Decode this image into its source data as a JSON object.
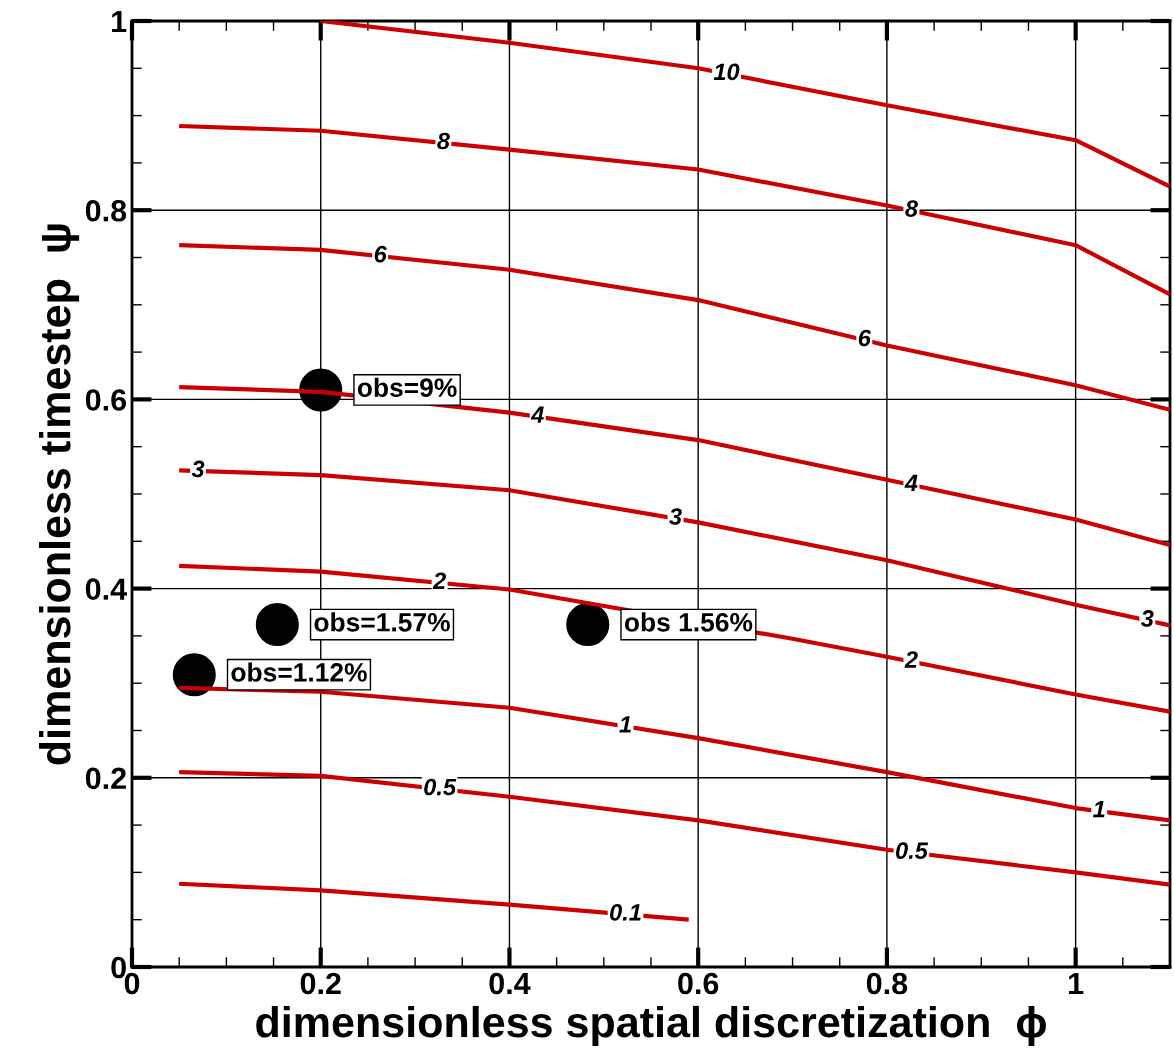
{
  "chart_data": {
    "type": "line",
    "xlabel": "dimensionless spatial discretization  ϕ",
    "ylabel": "dimensionless timestep  ψ",
    "xlim": [
      0,
      1.1
    ],
    "xticks": [
      0,
      0.2,
      0.4,
      0.6,
      0.8,
      1
    ],
    "ylim": [
      0,
      1
    ],
    "yticks": [
      0,
      0.2,
      0.4,
      0.6,
      0.8,
      1
    ],
    "grid": true,
    "legend": false,
    "marker": "none",
    "line_style": "solid",
    "series": [
      {
        "name": "10",
        "color": "#cc0000",
        "x": [
          0.2,
          0.4,
          0.6,
          0.8,
          1.0,
          1.1
        ],
        "values": [
          1.0,
          0.977,
          0.95,
          0.911,
          0.874,
          0.825
        ]
      },
      {
        "name": "8",
        "color": "#cc0000",
        "x": [
          0.05,
          0.2,
          0.4,
          0.6,
          0.8,
          1.0,
          1.1
        ],
        "values": [
          0.889,
          0.884,
          0.864,
          0.843,
          0.805,
          0.763,
          0.711
        ]
      },
      {
        "name": "6",
        "color": "#cc0000",
        "x": [
          0.05,
          0.2,
          0.4,
          0.6,
          0.8,
          1.0,
          1.1
        ],
        "values": [
          0.763,
          0.758,
          0.737,
          0.705,
          0.657,
          0.615,
          0.589
        ]
      },
      {
        "name": "4",
        "color": "#cc0000",
        "x": [
          0.05,
          0.2,
          0.4,
          0.6,
          0.8,
          1.0,
          1.1
        ],
        "values": [
          0.613,
          0.608,
          0.586,
          0.557,
          0.515,
          0.473,
          0.446
        ]
      },
      {
        "name": "3",
        "color": "#cc0000",
        "x": [
          0.05,
          0.2,
          0.4,
          0.6,
          0.8,
          1.0,
          1.1
        ],
        "values": [
          0.525,
          0.52,
          0.504,
          0.47,
          0.43,
          0.383,
          0.361
        ]
      },
      {
        "name": "2",
        "color": "#cc0000",
        "x": [
          0.05,
          0.2,
          0.4,
          0.7,
          0.8,
          1.0,
          1.1
        ],
        "values": [
          0.424,
          0.418,
          0.399,
          0.347,
          0.328,
          0.288,
          0.27
        ]
      },
      {
        "name": "1",
        "color": "#cc0000",
        "x": [
          0.05,
          0.2,
          0.4,
          0.6,
          0.8,
          1.0,
          1.1
        ],
        "values": [
          0.295,
          0.291,
          0.274,
          0.242,
          0.206,
          0.168,
          0.155
        ]
      },
      {
        "name": "0.5",
        "color": "#cc0000",
        "x": [
          0.05,
          0.2,
          0.4,
          0.6,
          0.8,
          1.0,
          1.1
        ],
        "values": [
          0.206,
          0.202,
          0.18,
          0.155,
          0.124,
          0.1,
          0.087
        ]
      },
      {
        "name": "0.1",
        "color": "#cc0000",
        "x": [
          0.05,
          0.2,
          0.4,
          0.59
        ],
        "values": [
          0.088,
          0.081,
          0.066,
          0.05
        ]
      },
      {
        "type": "scatter",
        "marker": "circle",
        "color": "#000000",
        "x": [
          0.2,
          0.154,
          0.483,
          0.066
        ],
        "values": [
          0.61,
          0.362,
          0.362,
          0.309
        ]
      }
    ],
    "annotations": [
      {
        "text": "obs=9%",
        "x": 0.2,
        "y": 0.61
      },
      {
        "text": "obs=1.57%",
        "x": 0.154,
        "y": 0.362
      },
      {
        "text": "obs 1.56%",
        "x": 0.483,
        "y": 0.362
      },
      {
        "text": "obs=1.12%",
        "x": 0.066,
        "y": 0.309
      }
    ]
  }
}
